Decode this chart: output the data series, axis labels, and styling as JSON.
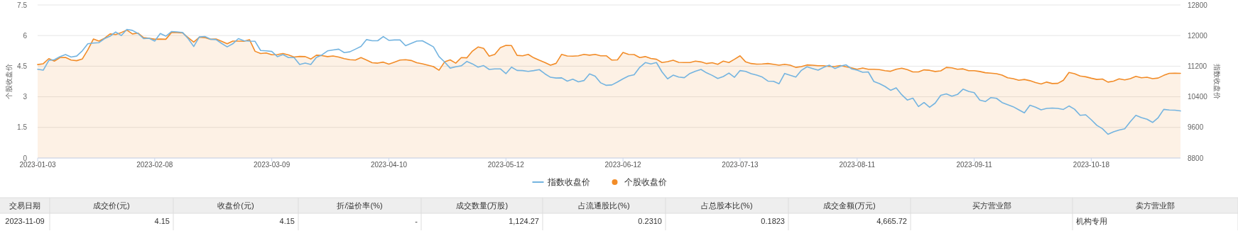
{
  "chart_data": {
    "type": "line",
    "categories": [
      "2023-01-03",
      null,
      null,
      null,
      null,
      null,
      null,
      null,
      null,
      null,
      null,
      null,
      null,
      null,
      null,
      null,
      null,
      null,
      null,
      null,
      null,
      "2023-02-08",
      null,
      null,
      null,
      null,
      null,
      null,
      null,
      null,
      null,
      null,
      null,
      null,
      null,
      null,
      null,
      null,
      null,
      null,
      null,
      null,
      "2023-03-09",
      null,
      null,
      null,
      null,
      null,
      null,
      null,
      null,
      null,
      null,
      null,
      null,
      null,
      null,
      null,
      null,
      null,
      null,
      null,
      null,
      "2023-04-10",
      null,
      null,
      null,
      null,
      null,
      null,
      null,
      null,
      null,
      null,
      null,
      null,
      null,
      null,
      null,
      null,
      null,
      null,
      null,
      null,
      "2023-05-12",
      null,
      null,
      null,
      null,
      null,
      null,
      null,
      null,
      null,
      null,
      null,
      null,
      null,
      null,
      null,
      null,
      null,
      null,
      null,
      null,
      "2023-06-12",
      null,
      null,
      null,
      null,
      null,
      null,
      null,
      null,
      null,
      null,
      null,
      null,
      null,
      null,
      null,
      null,
      null,
      null,
      null,
      null,
      "2023-07-13",
      null,
      null,
      null,
      null,
      null,
      null,
      null,
      null,
      null,
      null,
      null,
      null,
      null,
      null,
      null,
      null,
      null,
      null,
      null,
      null,
      "2023-08-11",
      null,
      null,
      null,
      null,
      null,
      null,
      null,
      null,
      null,
      null,
      null,
      null,
      null,
      null,
      null,
      null,
      null,
      null,
      null,
      null,
      "2023-09-11",
      null,
      null,
      null,
      null,
      null,
      null,
      null,
      null,
      null,
      null,
      null,
      null,
      null,
      null,
      null,
      null,
      null,
      null,
      null,
      null,
      "2023-10-18",
      null,
      null,
      null,
      null,
      null,
      null,
      null,
      null,
      null,
      null,
      null,
      null,
      null,
      null,
      null,
      null
    ],
    "series": [
      {
        "name": "指数收盘价",
        "axis": "y2",
        "color": "#74b4e0",
        "values": [
          11120,
          11095,
          11350,
          11370,
          11450,
          11505,
          11440,
          11465,
          11600,
          11785,
          11805,
          11815,
          11920,
          11985,
          12095,
          12000,
          12160,
          12135,
          12055,
          11920,
          11930,
          11855,
          12055,
          11985,
          12105,
          12095,
          12080,
          11920,
          11715,
          11965,
          11975,
          11905,
          11895,
          11795,
          11705,
          11785,
          11920,
          11865,
          11855,
          11850,
          11610,
          11600,
          11585,
          11450,
          11505,
          11425,
          11425,
          11245,
          11280,
          11245,
          11430,
          11495,
          11600,
          11625,
          11645,
          11555,
          11575,
          11645,
          11715,
          11895,
          11865,
          11865,
          11975,
          11875,
          11885,
          11885,
          11735,
          11795,
          11855,
          11865,
          11785,
          11705,
          11450,
          11310,
          11150,
          11185,
          11210,
          11325,
          11260,
          11175,
          11215,
          11115,
          11130,
          11130,
          11005,
          11175,
          11090,
          11085,
          11065,
          11085,
          11110,
          11000,
          10910,
          10890,
          10895,
          10810,
          10860,
          10790,
          10825,
          11000,
          10940,
          10765,
          10700,
          10710,
          10785,
          10870,
          10945,
          10975,
          11170,
          11295,
          11260,
          11295,
          11050,
          10870,
          10965,
          10915,
          10900,
          11010,
          11070,
          11115,
          11025,
          10960,
          10880,
          10930,
          11020,
          10910,
          11085,
          11065,
          11005,
          10965,
          10915,
          10810,
          10805,
          10740,
          11010,
          10960,
          10915,
          11090,
          11185,
          11140,
          11095,
          11170,
          11225,
          11140,
          11200,
          11235,
          11130,
          11095,
          11040,
          11050,
          10800,
          10745,
          10670,
          10570,
          10635,
          10455,
          10315,
          10365,
          10145,
          10250,
          10125,
          10235,
          10440,
          10475,
          10415,
          10460,
          10600,
          10540,
          10510,
          10315,
          10275,
          10380,
          10360,
          10250,
          10195,
          10140,
          10060,
          9980,
          10180,
          10130,
          10060,
          10095,
          10105,
          10095,
          10070,
          10160,
          10075,
          9915,
          9930,
          9800,
          9655,
          9565,
          9420,
          9485,
          9530,
          9565,
          9750,
          9915,
          9855,
          9815,
          9730,
          9855,
          10070,
          10055,
          10050,
          10030
        ]
      },
      {
        "name": "个股收盘价",
        "type": "area",
        "axis": "y",
        "color": "#f28c28",
        "values": [
          4.58,
          4.62,
          4.87,
          4.75,
          4.92,
          4.93,
          4.8,
          4.77,
          4.85,
          5.3,
          5.83,
          5.73,
          5.87,
          6.08,
          6.05,
          6.15,
          6.27,
          6.08,
          6.12,
          5.9,
          5.87,
          5.82,
          5.83,
          5.82,
          6.15,
          6.15,
          6.13,
          5.9,
          5.68,
          5.92,
          5.9,
          5.82,
          5.83,
          5.72,
          5.6,
          5.73,
          5.73,
          5.72,
          5.8,
          5.23,
          5.12,
          5.15,
          5.06,
          5.07,
          5.12,
          5.05,
          4.95,
          4.98,
          4.97,
          4.85,
          5.04,
          5.02,
          4.97,
          5.0,
          4.95,
          4.87,
          4.82,
          4.8,
          4.92,
          4.8,
          4.67,
          4.65,
          4.7,
          4.6,
          4.7,
          4.8,
          4.82,
          4.78,
          4.67,
          4.62,
          4.55,
          4.48,
          4.3,
          4.71,
          4.81,
          4.65,
          4.92,
          4.91,
          5.24,
          5.44,
          5.37,
          4.99,
          5.08,
          5.41,
          5.52,
          5.51,
          5.03,
          5.01,
          5.08,
          4.91,
          4.79,
          4.68,
          4.55,
          4.64,
          5.08,
          5.0,
          4.99,
          5.01,
          5.08,
          5.04,
          5.08,
          5.01,
          5.01,
          4.8,
          4.81,
          5.17,
          5.08,
          5.07,
          4.92,
          4.97,
          4.88,
          4.84,
          4.68,
          4.72,
          4.79,
          4.69,
          4.68,
          4.68,
          4.75,
          4.71,
          4.63,
          4.67,
          4.59,
          4.75,
          4.68,
          4.84,
          5.01,
          4.71,
          4.63,
          4.6,
          4.61,
          4.63,
          4.59,
          4.55,
          4.59,
          4.55,
          4.44,
          4.48,
          4.56,
          4.55,
          4.52,
          4.52,
          4.49,
          4.49,
          4.53,
          4.47,
          4.42,
          4.35,
          4.41,
          4.35,
          4.35,
          4.33,
          4.28,
          4.25,
          4.35,
          4.4,
          4.33,
          4.22,
          4.22,
          4.32,
          4.3,
          4.24,
          4.27,
          4.44,
          4.42,
          4.35,
          4.37,
          4.28,
          4.28,
          4.24,
          4.18,
          4.16,
          4.13,
          4.06,
          3.93,
          3.89,
          3.81,
          3.85,
          3.79,
          3.7,
          3.63,
          3.72,
          3.65,
          3.66,
          3.81,
          4.19,
          4.13,
          4.02,
          3.98,
          3.91,
          3.85,
          3.87,
          3.72,
          3.77,
          3.88,
          3.83,
          3.89,
          4.0,
          3.93,
          3.96,
          3.89,
          3.92,
          4.05,
          4.15,
          4.16,
          4.15
        ]
      }
    ],
    "ylabel": "个股收盘价",
    "y2label": "指数收盘价",
    "ylim": [
      0,
      7.5
    ],
    "yticks": [
      0,
      1.5,
      3,
      4.5,
      6,
      7.5
    ],
    "y2lim": [
      8800,
      12800
    ],
    "y2ticks": [
      8800,
      9600,
      10400,
      11200,
      12000,
      12800
    ],
    "grid": "y",
    "legend": "bottom",
    "annotations": [
      "交易日期",
      "成交价(元)",
      "收盘价(元)",
      "折/溢价率(%)",
      "成交数量(万股)",
      "占流通股比(%)",
      "占总股本比(%)",
      "成交金额(万元)",
      "买方营业部",
      "卖方营业部",
      "2023-11-09",
      "4.15",
      "4.15",
      "-",
      "1,124.27",
      "0.2310",
      "0.1823",
      "4,665.72",
      "机构专用"
    ]
  }
}
